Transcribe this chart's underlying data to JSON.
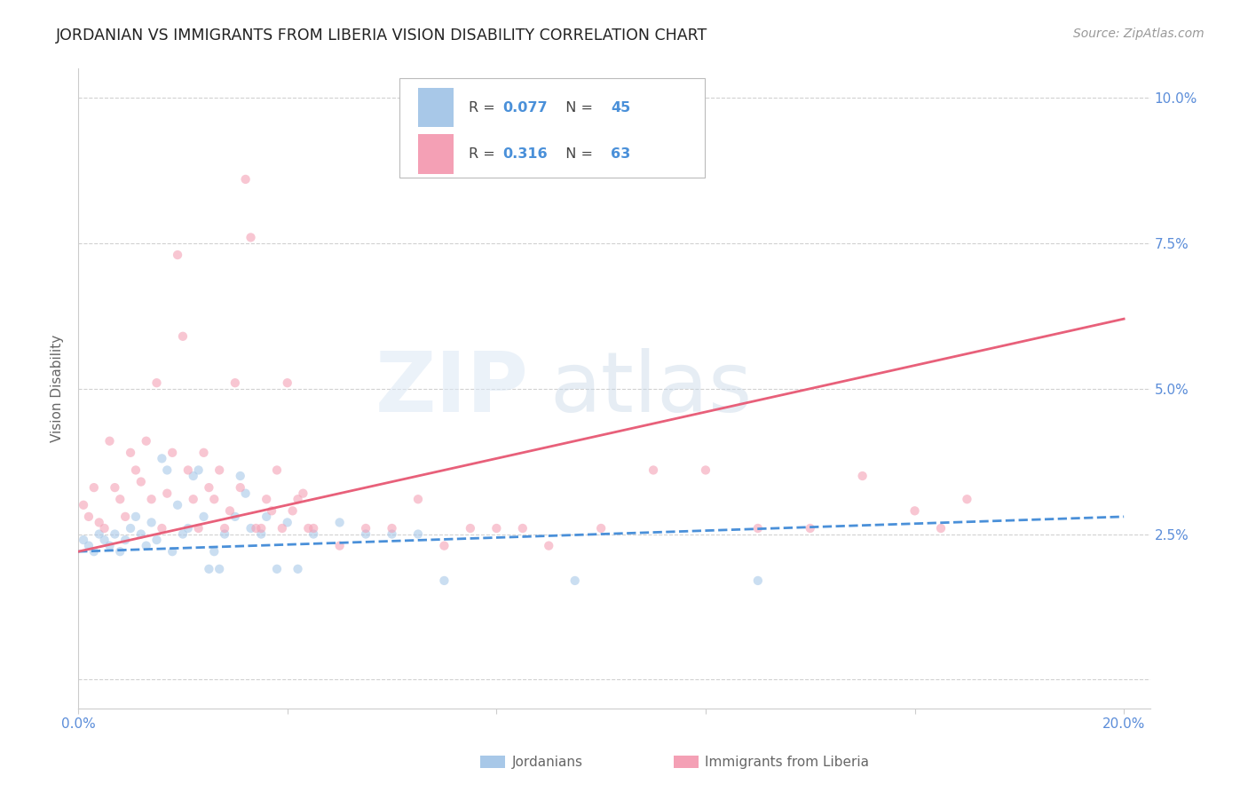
{
  "title": "JORDANIAN VS IMMIGRANTS FROM LIBERIA VISION DISABILITY CORRELATION CHART",
  "source": "Source: ZipAtlas.com",
  "ylabel": "Vision Disability",
  "watermark_text": "ZIP",
  "watermark_text2": "atlas",
  "xlim": [
    0.0,
    0.205
  ],
  "ylim": [
    -0.005,
    0.105
  ],
  "xticks": [
    0.0,
    0.04,
    0.08,
    0.12,
    0.16,
    0.2
  ],
  "xtick_labels": [
    "0.0%",
    "",
    "",
    "",
    "",
    "20.0%"
  ],
  "yticks": [
    0.0,
    0.025,
    0.05,
    0.075,
    0.1
  ],
  "ytick_labels_right": [
    "",
    "2.5%",
    "5.0%",
    "7.5%",
    "10.0%"
  ],
  "legend_entries": [
    {
      "label": "Jordanians",
      "color": "#a8c8e8",
      "R": "0.077",
      "N": "45",
      "line_color": "#4a90d9",
      "line_style": "--"
    },
    {
      "label": "Immigrants from Liberia",
      "color": "#f4a0b5",
      "R": "0.316",
      "N": "63",
      "line_color": "#e8607a",
      "line_style": "-"
    }
  ],
  "jordanian_scatter": [
    [
      0.001,
      0.024
    ],
    [
      0.002,
      0.023
    ],
    [
      0.003,
      0.022
    ],
    [
      0.004,
      0.025
    ],
    [
      0.005,
      0.024
    ],
    [
      0.006,
      0.023
    ],
    [
      0.007,
      0.025
    ],
    [
      0.008,
      0.022
    ],
    [
      0.009,
      0.024
    ],
    [
      0.01,
      0.026
    ],
    [
      0.011,
      0.028
    ],
    [
      0.012,
      0.025
    ],
    [
      0.013,
      0.023
    ],
    [
      0.014,
      0.027
    ],
    [
      0.015,
      0.024
    ],
    [
      0.016,
      0.038
    ],
    [
      0.017,
      0.036
    ],
    [
      0.018,
      0.022
    ],
    [
      0.019,
      0.03
    ],
    [
      0.02,
      0.025
    ],
    [
      0.021,
      0.026
    ],
    [
      0.022,
      0.035
    ],
    [
      0.023,
      0.036
    ],
    [
      0.024,
      0.028
    ],
    [
      0.025,
      0.019
    ],
    [
      0.026,
      0.022
    ],
    [
      0.027,
      0.019
    ],
    [
      0.028,
      0.025
    ],
    [
      0.03,
      0.028
    ],
    [
      0.031,
      0.035
    ],
    [
      0.032,
      0.032
    ],
    [
      0.033,
      0.026
    ],
    [
      0.035,
      0.025
    ],
    [
      0.036,
      0.028
    ],
    [
      0.038,
      0.019
    ],
    [
      0.04,
      0.027
    ],
    [
      0.042,
      0.019
    ],
    [
      0.045,
      0.025
    ],
    [
      0.05,
      0.027
    ],
    [
      0.055,
      0.025
    ],
    [
      0.06,
      0.025
    ],
    [
      0.065,
      0.025
    ],
    [
      0.07,
      0.017
    ],
    [
      0.095,
      0.017
    ],
    [
      0.13,
      0.017
    ]
  ],
  "liberia_scatter": [
    [
      0.001,
      0.03
    ],
    [
      0.002,
      0.028
    ],
    [
      0.003,
      0.033
    ],
    [
      0.004,
      0.027
    ],
    [
      0.005,
      0.026
    ],
    [
      0.006,
      0.041
    ],
    [
      0.007,
      0.033
    ],
    [
      0.008,
      0.031
    ],
    [
      0.009,
      0.028
    ],
    [
      0.01,
      0.039
    ],
    [
      0.011,
      0.036
    ],
    [
      0.012,
      0.034
    ],
    [
      0.013,
      0.041
    ],
    [
      0.014,
      0.031
    ],
    [
      0.015,
      0.051
    ],
    [
      0.016,
      0.026
    ],
    [
      0.017,
      0.032
    ],
    [
      0.018,
      0.039
    ],
    [
      0.019,
      0.073
    ],
    [
      0.02,
      0.059
    ],
    [
      0.021,
      0.036
    ],
    [
      0.022,
      0.031
    ],
    [
      0.023,
      0.026
    ],
    [
      0.024,
      0.039
    ],
    [
      0.025,
      0.033
    ],
    [
      0.026,
      0.031
    ],
    [
      0.027,
      0.036
    ],
    [
      0.028,
      0.026
    ],
    [
      0.029,
      0.029
    ],
    [
      0.03,
      0.051
    ],
    [
      0.031,
      0.033
    ],
    [
      0.032,
      0.086
    ],
    [
      0.033,
      0.076
    ],
    [
      0.034,
      0.026
    ],
    [
      0.035,
      0.026
    ],
    [
      0.036,
      0.031
    ],
    [
      0.037,
      0.029
    ],
    [
      0.038,
      0.036
    ],
    [
      0.039,
      0.026
    ],
    [
      0.04,
      0.051
    ],
    [
      0.041,
      0.029
    ],
    [
      0.042,
      0.031
    ],
    [
      0.043,
      0.032
    ],
    [
      0.044,
      0.026
    ],
    [
      0.045,
      0.026
    ],
    [
      0.05,
      0.023
    ],
    [
      0.055,
      0.026
    ],
    [
      0.06,
      0.026
    ],
    [
      0.065,
      0.031
    ],
    [
      0.07,
      0.023
    ],
    [
      0.075,
      0.026
    ],
    [
      0.08,
      0.026
    ],
    [
      0.085,
      0.026
    ],
    [
      0.09,
      0.023
    ],
    [
      0.1,
      0.026
    ],
    [
      0.11,
      0.036
    ],
    [
      0.12,
      0.036
    ],
    [
      0.13,
      0.026
    ],
    [
      0.14,
      0.026
    ],
    [
      0.15,
      0.035
    ],
    [
      0.16,
      0.029
    ],
    [
      0.165,
      0.026
    ],
    [
      0.17,
      0.031
    ]
  ],
  "jordanian_line_x": [
    0.0,
    0.2
  ],
  "jordanian_line_y": [
    0.022,
    0.028
  ],
  "liberia_line_x": [
    0.0,
    0.2
  ],
  "liberia_line_y": [
    0.022,
    0.062
  ],
  "background_color": "#ffffff",
  "grid_color": "#cccccc",
  "scatter_alpha": 0.6,
  "scatter_size": 55,
  "title_color": "#222222",
  "title_fontsize": 12.5,
  "source_color": "#999999",
  "source_fontsize": 10,
  "ylabel_color": "#666666",
  "ylabel_fontsize": 11,
  "tick_color": "#5b8dd9",
  "tick_fontsize": 11,
  "legend_R_N_color": "#4a90d9",
  "legend_label_color": "#666666",
  "legend_text_color": "#555555"
}
